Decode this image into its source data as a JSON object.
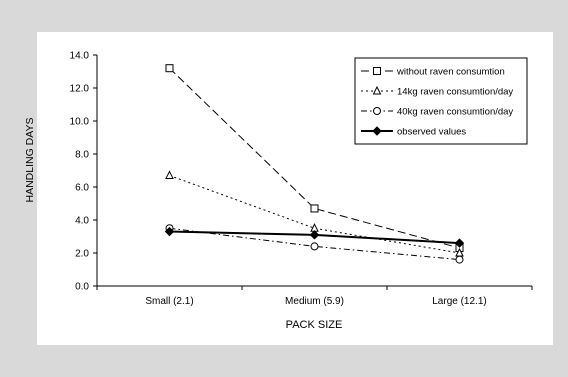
{
  "chart_data": {
    "type": "line",
    "title": "",
    "xlabel": "PACK SIZE",
    "ylabel": "HANDLING DAYS",
    "categories": [
      "Small (2.1)",
      "Medium (5.9)",
      "Large (12.1)"
    ],
    "ylim": [
      0,
      14
    ],
    "yticks": [
      "0.0",
      "2.0",
      "4.0",
      "6.0",
      "8.0",
      "10.0",
      "12.0",
      "14.0"
    ],
    "grid": false,
    "legend_position": "top-right",
    "series": [
      {
        "name": "without raven consumtion",
        "values": [
          13.2,
          4.7,
          2.3
        ],
        "marker": "square",
        "dash": "long-dash",
        "width": 1
      },
      {
        "name": "14kg raven consumtion/day",
        "values": [
          6.7,
          3.5,
          2.0
        ],
        "marker": "triangle",
        "dash": "dot",
        "width": 1
      },
      {
        "name": "40kg raven consumtion/day",
        "values": [
          3.5,
          2.4,
          1.6
        ],
        "marker": "circle",
        "dash": "dash-dot",
        "width": 1
      },
      {
        "name": "observed values",
        "values": [
          3.3,
          3.1,
          2.6
        ],
        "marker": "diamond",
        "dash": "solid",
        "width": 2
      }
    ]
  }
}
